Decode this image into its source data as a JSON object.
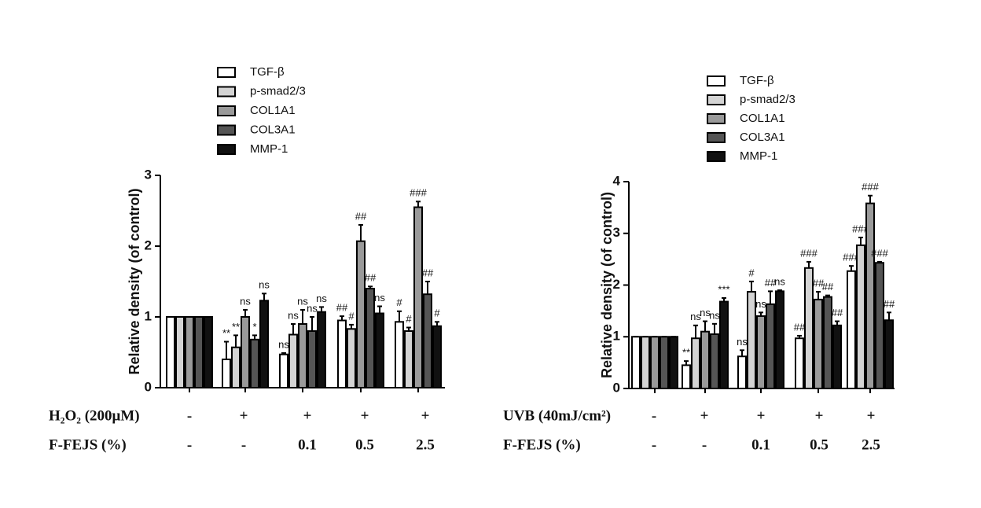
{
  "chart_data": [
    {
      "type": "bar",
      "y_label": "Relative density (of control)",
      "ylim": [
        0,
        3
      ],
      "yticks": [
        0,
        1,
        2,
        3
      ],
      "categories": [
        null,
        null,
        null,
        null,
        null
      ],
      "series": [
        {
          "name": "TGF-β",
          "color": "#ffffff",
          "values": [
            1,
            0.4,
            0.47,
            0.95,
            0.93
          ],
          "errors": [
            0,
            0.25,
            0.02,
            0.06,
            0.15
          ],
          "annotations": [
            null,
            "**",
            "ns",
            "##",
            "#"
          ]
        },
        {
          "name": "p-smad2/3",
          "color": "#d4d4d4",
          "values": [
            1,
            0.57,
            0.75,
            0.83,
            0.8
          ],
          "errors": [
            0,
            0.17,
            0.15,
            0.06,
            0.05
          ],
          "annotations": [
            null,
            "**",
            "ns",
            "#",
            "#"
          ]
        },
        {
          "name": "COL1A1",
          "color": "#9a9a9a",
          "values": [
            1,
            1.0,
            0.9,
            2.07,
            2.55
          ],
          "errors": [
            0,
            0.1,
            0.2,
            0.23,
            0.08
          ],
          "annotations": [
            null,
            "ns",
            "ns",
            "##",
            "###"
          ]
        },
        {
          "name": "COL3A1",
          "color": "#555555",
          "values": [
            1,
            0.68,
            0.8,
            1.4,
            1.32
          ],
          "errors": [
            0,
            0.06,
            0.2,
            0.03,
            0.18
          ],
          "annotations": [
            null,
            "*",
            "ns",
            "##",
            "##"
          ]
        },
        {
          "name": "MMP-1",
          "color": "#111111",
          "values": [
            1,
            1.23,
            1.07,
            1.05,
            0.87
          ],
          "errors": [
            0,
            0.1,
            0.07,
            0.1,
            0.06
          ],
          "annotations": [
            null,
            "ns",
            "ns",
            "ns",
            "#"
          ]
        }
      ],
      "treatments": [
        {
          "label": "H₂O₂ (200μM)",
          "values": [
            "-",
            "+",
            "+",
            "+",
            "+"
          ]
        },
        {
          "label": "F-FEJS (%)",
          "values": [
            "-",
            "-",
            "0.1",
            "0.5",
            "2.5"
          ]
        }
      ]
    },
    {
      "type": "bar",
      "y_label": "Relative density (of control)",
      "ylim": [
        0,
        4
      ],
      "yticks": [
        0,
        1,
        2,
        3,
        4
      ],
      "categories": [
        null,
        null,
        null,
        null,
        null
      ],
      "series": [
        {
          "name": "TGF-β",
          "color": "#ffffff",
          "values": [
            1,
            0.45,
            0.62,
            0.97,
            2.27
          ],
          "errors": [
            0,
            0.08,
            0.12,
            0.05,
            0.1
          ],
          "annotations": [
            null,
            "**",
            "ns",
            "##",
            "###"
          ]
        },
        {
          "name": "p-smad2/3",
          "color": "#d4d4d4",
          "values": [
            1,
            0.97,
            1.87,
            2.33,
            2.77
          ],
          "errors": [
            0,
            0.25,
            0.2,
            0.12,
            0.15
          ],
          "annotations": [
            null,
            "ns",
            "#",
            "###",
            "###"
          ]
        },
        {
          "name": "COL1A1",
          "color": "#9a9a9a",
          "values": [
            1,
            1.1,
            1.4,
            1.72,
            3.58
          ],
          "errors": [
            0,
            0.2,
            0.07,
            0.15,
            0.15
          ],
          "annotations": [
            null,
            "ns",
            "ns",
            "##",
            "###"
          ]
        },
        {
          "name": "COL3A1",
          "color": "#555555",
          "values": [
            1,
            1.05,
            1.63,
            1.77,
            2.43
          ],
          "errors": [
            0,
            0.2,
            0.25,
            0.03,
            0.02
          ],
          "annotations": [
            null,
            "ns",
            "##",
            "##",
            "###"
          ]
        },
        {
          "name": "MMP-1",
          "color": "#111111",
          "values": [
            1,
            1.68,
            1.88,
            1.22,
            1.32
          ],
          "errors": [
            0,
            0.07,
            0.02,
            0.08,
            0.15
          ],
          "annotations": [
            null,
            "***",
            "ns",
            "##",
            "##"
          ]
        }
      ],
      "treatments": [
        {
          "label": "UVB (40mJ/cm²)",
          "values": [
            "-",
            "+",
            "+",
            "+",
            "+"
          ]
        },
        {
          "label": "F-FEJS (%)",
          "values": [
            "-",
            "-",
            "0.1",
            "0.5",
            "2.5"
          ]
        }
      ]
    }
  ]
}
